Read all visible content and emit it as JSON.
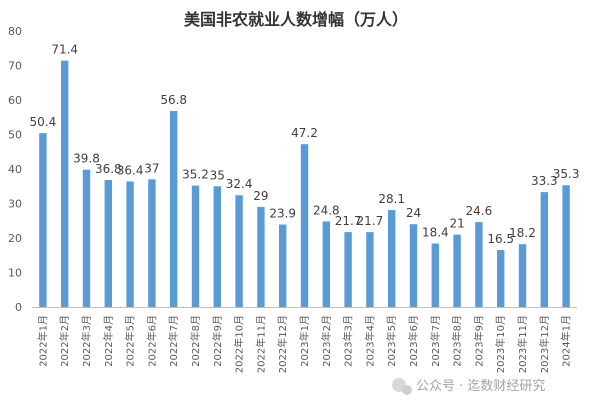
{
  "chart_data": {
    "type": "bar",
    "title": "美国非农就业人数增幅（万人）",
    "xlabel": "",
    "ylabel": "",
    "ylim": [
      0,
      80
    ],
    "yticks": [
      0,
      10,
      20,
      30,
      40,
      50,
      60,
      70,
      80
    ],
    "grid": false,
    "legend": "none",
    "bar_color": "#5b9bd5",
    "categories": [
      "2022年1月",
      "2022年2月",
      "2022年3月",
      "2022年4月",
      "2022年5月",
      "2022年6月",
      "2022年7月",
      "2022年8月",
      "2022年9月",
      "2022年10月",
      "2022年11月",
      "2022年12月",
      "2023年1月",
      "2023年2月",
      "2023年3月",
      "2023年4月",
      "2023年5月",
      "2023年6月",
      "2023年7月",
      "2023年8月",
      "2023年9月",
      "2023年10月",
      "2023年11月",
      "2023年12月",
      "2024年1月"
    ],
    "values": [
      50.4,
      71.4,
      39.8,
      36.8,
      36.4,
      37,
      56.8,
      35.2,
      35,
      32.4,
      29,
      23.9,
      47.2,
      24.8,
      21.7,
      21.7,
      28.1,
      24,
      18.4,
      21,
      24.6,
      16.5,
      18.2,
      33.3,
      35.3
    ],
    "data_labels": [
      "50.4",
      "71.4",
      "39.8",
      "36.8",
      "36.4",
      "37",
      "56.8",
      "35.2",
      "35",
      "32.4",
      "29",
      "23.9",
      "47.2",
      "24.8",
      "21.7",
      "21.7",
      "28.1",
      "24",
      "18.4",
      "21",
      "24.6",
      "16.5",
      "18.2",
      "33.3",
      "35.3"
    ]
  },
  "watermark": {
    "text": "公众号 · 迄数财经研究"
  }
}
